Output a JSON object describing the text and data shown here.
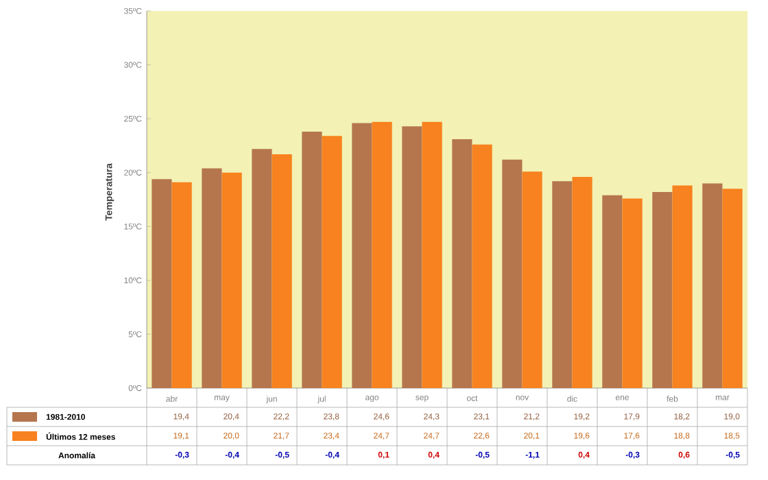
{
  "chart_data": {
    "type": "bar",
    "ylabel": "Temperatura",
    "categories": [
      "abr",
      "may",
      "jun",
      "jul",
      "ago",
      "sep",
      "oct",
      "nov",
      "dic",
      "ene",
      "feb",
      "mar"
    ],
    "series": [
      {
        "name": "1981-2010",
        "color": "#b5764e",
        "values": [
          19.4,
          20.4,
          22.2,
          23.8,
          24.6,
          24.3,
          23.1,
          21.2,
          19.2,
          17.9,
          18.2,
          19.0
        ],
        "value_labels": [
          "19,4",
          "20,4",
          "22,2",
          "23,8",
          "24,6",
          "24,3",
          "23,1",
          "21,2",
          "19,2",
          "17,9",
          "18,2",
          "19,0"
        ]
      },
      {
        "name": "Últimos 12 meses",
        "color": "#f7821f",
        "values": [
          19.1,
          20.0,
          21.7,
          23.4,
          24.7,
          24.7,
          22.6,
          20.1,
          19.6,
          17.6,
          18.8,
          18.5
        ],
        "value_labels": [
          "19,1",
          "20,0",
          "21,7",
          "23,4",
          "24,7",
          "24,7",
          "22,6",
          "20,1",
          "19,6",
          "17,6",
          "18,8",
          "18,5"
        ]
      }
    ],
    "ylim": [
      0,
      35
    ],
    "yticks": [
      {
        "value": 0,
        "label": "0ºC"
      },
      {
        "value": 5,
        "label": "5ºC"
      },
      {
        "value": 10,
        "label": "10ºC"
      },
      {
        "value": 15,
        "label": "15ºC"
      },
      {
        "value": 20,
        "label": "20ºC"
      },
      {
        "value": 25,
        "label": "25ºC"
      },
      {
        "value": 30,
        "label": "30ºC"
      },
      {
        "value": 35,
        "label": "35ºC"
      }
    ],
    "grid": false,
    "legend": "bottom",
    "annotations": [
      "Anomalía",
      "-0,3",
      "-0,4",
      "-0,5",
      "-0,4",
      "0,1",
      "0,4",
      "-0,5",
      "-1,1",
      "0,4",
      "-0,3",
      "0,6",
      "-0,5"
    ]
  }
}
